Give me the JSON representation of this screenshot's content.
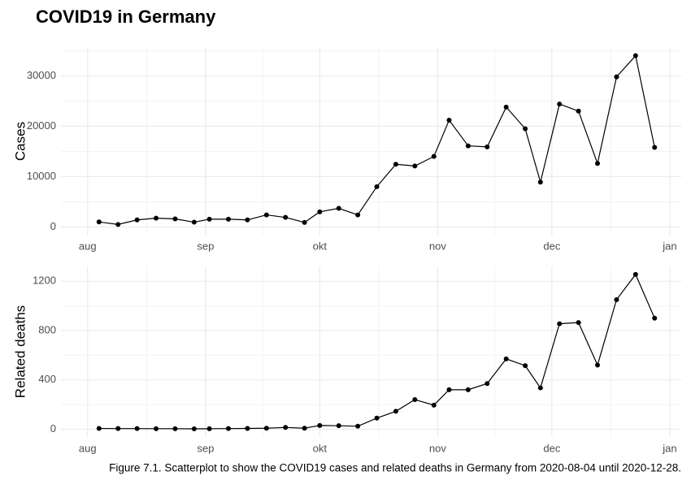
{
  "title": "COVID19 in Germany",
  "caption": "Figure 7.1. Scatterplot to show the COVID19 cases and related deaths in Germany from 2020-08-04 until 2020-12-28.",
  "chart_data": [
    {
      "type": "line",
      "markers": true,
      "color": "#000000",
      "ylabel": "Cases",
      "grid": true,
      "x": [
        "2020-08-04",
        "2020-08-09",
        "2020-08-14",
        "2020-08-19",
        "2020-08-24",
        "2020-08-29",
        "2020-09-02",
        "2020-09-07",
        "2020-09-12",
        "2020-09-17",
        "2020-09-22",
        "2020-09-27",
        "2020-10-01",
        "2020-10-06",
        "2020-10-11",
        "2020-10-16",
        "2020-10-21",
        "2020-10-26",
        "2020-10-31",
        "2020-11-04",
        "2020-11-09",
        "2020-11-14",
        "2020-11-19",
        "2020-11-24",
        "2020-11-28",
        "2020-12-03",
        "2020-12-08",
        "2020-12-13",
        "2020-12-18",
        "2020-12-23",
        "2020-12-28"
      ],
      "values": [
        1000,
        500,
        1400,
        1750,
        1600,
        950,
        1550,
        1550,
        1400,
        2400,
        1900,
        900,
        3000,
        3700,
        2400,
        8000,
        12450,
        12100,
        14000,
        21200,
        16100,
        15900,
        23800,
        19500,
        8900,
        24400,
        23000,
        12600,
        29800,
        34000,
        15800
      ],
      "xlim": [
        "2020-07-25",
        "2021-01-04"
      ],
      "xticks": [
        {
          "value": "2020-08-01",
          "label": "aug"
        },
        {
          "value": "2020-09-01",
          "label": "sep"
        },
        {
          "value": "2020-10-01",
          "label": "okt"
        },
        {
          "value": "2020-11-01",
          "label": "nov"
        },
        {
          "value": "2020-12-01",
          "label": "dec"
        },
        {
          "value": "2021-01-01",
          "label": "jan"
        }
      ],
      "ylim": [
        -1700,
        35700
      ],
      "yticks": [
        0,
        10000,
        20000,
        30000
      ]
    },
    {
      "type": "line",
      "markers": true,
      "color": "#000000",
      "ylabel": "Related deaths",
      "grid": true,
      "x": [
        "2020-08-04",
        "2020-08-09",
        "2020-08-14",
        "2020-08-19",
        "2020-08-24",
        "2020-08-29",
        "2020-09-02",
        "2020-09-07",
        "2020-09-12",
        "2020-09-17",
        "2020-09-22",
        "2020-09-27",
        "2020-10-01",
        "2020-10-06",
        "2020-10-11",
        "2020-10-16",
        "2020-10-21",
        "2020-10-26",
        "2020-10-31",
        "2020-11-04",
        "2020-11-09",
        "2020-11-14",
        "2020-11-19",
        "2020-11-24",
        "2020-11-28",
        "2020-12-03",
        "2020-12-08",
        "2020-12-13",
        "2020-12-18",
        "2020-12-23",
        "2020-12-28"
      ],
      "values": [
        6,
        5,
        5,
        4,
        4,
        3,
        4,
        5,
        6,
        8,
        14,
        8,
        30,
        28,
        24,
        90,
        145,
        240,
        195,
        320,
        320,
        370,
        570,
        515,
        335,
        855,
        865,
        520,
        1050,
        1255,
        900
      ],
      "xlim": [
        "2020-07-25",
        "2021-01-04"
      ],
      "xticks": [
        {
          "value": "2020-08-01",
          "label": "aug"
        },
        {
          "value": "2020-09-01",
          "label": "sep"
        },
        {
          "value": "2020-10-01",
          "label": "okt"
        },
        {
          "value": "2020-11-01",
          "label": "nov"
        },
        {
          "value": "2020-12-01",
          "label": "dec"
        },
        {
          "value": "2021-01-01",
          "label": "jan"
        }
      ],
      "ylim": [
        -63,
        1320
      ],
      "yticks": [
        0,
        400,
        800,
        1200
      ]
    }
  ]
}
